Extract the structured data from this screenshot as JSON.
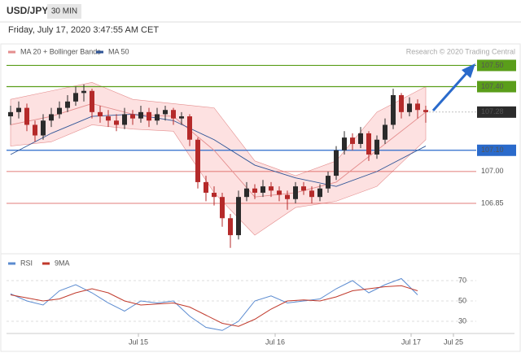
{
  "chart_data": [
    {
      "type": "candlestick",
      "title": "USD/JPY",
      "timeframe": "30 MIN",
      "subtitle": "Friday, July 17, 2020 3:47:55 AM CET",
      "source": "Research © 2020 Trading Central",
      "x": [
        0,
        1,
        2,
        3,
        4,
        5,
        6,
        7,
        8,
        9,
        10,
        11,
        12,
        13,
        14,
        15,
        16,
        17,
        18,
        19,
        20,
        21,
        22,
        23,
        24,
        25,
        26,
        27,
        28,
        29,
        30,
        31,
        32,
        33,
        34,
        35,
        36,
        37,
        38,
        39,
        40,
        41,
        42,
        43,
        44,
        45,
        46,
        47,
        48,
        49,
        50,
        51
      ],
      "open": [
        107.26,
        107.28,
        107.3,
        107.22,
        107.17,
        107.24,
        107.27,
        107.3,
        107.33,
        107.37,
        107.38,
        107.28,
        107.26,
        107.24,
        107.22,
        107.27,
        107.25,
        107.28,
        107.24,
        107.27,
        107.29,
        107.25,
        107.26,
        107.15,
        106.95,
        106.9,
        106.88,
        106.78,
        106.7,
        106.88,
        106.92,
        106.9,
        106.93,
        106.91,
        106.89,
        106.87,
        106.93,
        106.91,
        106.88,
        106.92,
        106.98,
        107.1,
        107.16,
        107.13,
        107.18,
        107.08,
        107.15,
        107.22,
        107.36,
        107.28,
        107.32,
        107.29
      ],
      "high": [
        107.31,
        107.33,
        107.32,
        107.24,
        107.27,
        107.3,
        107.33,
        107.36,
        107.4,
        107.41,
        107.39,
        107.31,
        107.29,
        107.27,
        107.3,
        107.29,
        107.31,
        107.3,
        107.3,
        107.31,
        107.3,
        107.28,
        107.27,
        107.16,
        106.98,
        106.93,
        106.9,
        106.8,
        106.91,
        106.95,
        106.94,
        106.96,
        106.95,
        106.93,
        106.91,
        106.95,
        106.95,
        106.93,
        106.94,
        107.0,
        107.12,
        107.19,
        107.18,
        107.21,
        107.19,
        107.17,
        107.25,
        107.39,
        107.37,
        107.35,
        107.34,
        107.31
      ],
      "low": [
        107.22,
        107.25,
        107.19,
        107.14,
        107.15,
        107.21,
        107.25,
        107.28,
        107.31,
        107.33,
        107.25,
        107.23,
        107.21,
        107.19,
        107.2,
        107.22,
        107.23,
        107.21,
        107.22,
        107.24,
        107.22,
        107.22,
        107.12,
        106.92,
        106.86,
        106.84,
        106.74,
        106.64,
        106.68,
        106.86,
        106.87,
        106.88,
        106.88,
        106.86,
        106.82,
        106.85,
        106.89,
        106.85,
        106.86,
        106.9,
        106.96,
        107.08,
        107.1,
        107.11,
        107.05,
        107.06,
        107.13,
        107.2,
        107.25,
        107.26,
        107.25,
        107.23
      ],
      "close": [
        107.28,
        107.3,
        107.22,
        107.17,
        107.24,
        107.27,
        107.3,
        107.33,
        107.37,
        107.38,
        107.28,
        107.26,
        107.24,
        107.22,
        107.27,
        107.25,
        107.28,
        107.24,
        107.27,
        107.29,
        107.25,
        107.26,
        107.15,
        106.95,
        106.9,
        106.88,
        106.78,
        106.7,
        106.88,
        106.92,
        106.9,
        106.93,
        106.91,
        106.89,
        106.87,
        106.93,
        106.91,
        106.88,
        106.92,
        106.98,
        107.1,
        107.16,
        107.13,
        107.18,
        107.08,
        107.15,
        107.22,
        107.36,
        107.28,
        107.32,
        107.29,
        107.28
      ],
      "up_color": "#2b2b2b",
      "down_color": "#b52a2a",
      "overlays": [
        {
          "name": "MA 20 + Bollinger Bands",
          "color": "#e48e8e",
          "fill": "#fde1e1",
          "x": [
            0,
            5,
            10,
            15,
            20,
            25,
            30,
            35,
            40,
            45,
            51
          ],
          "values": [
            107.22,
            107.26,
            107.32,
            107.27,
            107.26,
            107.1,
            106.88,
            106.9,
            106.95,
            107.1,
            107.28
          ],
          "upper": [
            107.34,
            107.38,
            107.42,
            107.34,
            107.32,
            107.3,
            107.05,
            106.98,
            107.05,
            107.28,
            107.4
          ],
          "lower": [
            107.12,
            107.14,
            107.22,
            107.2,
            107.19,
            106.9,
            106.7,
            106.83,
            106.86,
            106.93,
            107.15
          ]
        },
        {
          "name": "MA 50",
          "color": "#2f5597",
          "x": [
            0,
            5,
            10,
            15,
            20,
            25,
            30,
            35,
            40,
            45,
            51
          ],
          "values": [
            107.08,
            107.18,
            107.26,
            107.27,
            107.24,
            107.15,
            107.03,
            106.97,
            106.93,
            107.0,
            107.12
          ]
        }
      ],
      "levels": [
        {
          "value": 107.5,
          "label": "107.50",
          "color": "#5a9e1a",
          "box": true,
          "style": "solid"
        },
        {
          "value": 107.4,
          "label": "107.40",
          "color": "#5a9e1a",
          "box": true,
          "style": "solid"
        },
        {
          "value": 107.28,
          "label": "107.28",
          "color": "#2b2b2b",
          "box": true,
          "style": "dotted"
        },
        {
          "value": 107.1,
          "label": "107.10",
          "color": "#2a6acb",
          "box": true,
          "style": "solid"
        },
        {
          "value": 107.0,
          "label": "107.00",
          "color": "#d9534f",
          "box": false,
          "style": "solid"
        },
        {
          "value": 106.85,
          "label": "106.85",
          "color": "#d9534f",
          "box": false,
          "style": "solid"
        }
      ],
      "xlim": [
        -0.5,
        57.2
      ],
      "ylim": [
        106.62,
        107.54
      ]
    },
    {
      "type": "line",
      "x": [
        0,
        2,
        4,
        6,
        8,
        10,
        12,
        14,
        16,
        18,
        20,
        22,
        24,
        26,
        28,
        30,
        32,
        34,
        36,
        38,
        40,
        42,
        44,
        46,
        48,
        50
      ],
      "series": [
        {
          "name": "RSI",
          "color": "#5b8bd0",
          "values": [
            57,
            50,
            46,
            60,
            66,
            58,
            48,
            40,
            50,
            48,
            50,
            35,
            24,
            21,
            30,
            50,
            55,
            48,
            50,
            52,
            62,
            70,
            58,
            66,
            72,
            56
          ]
        },
        {
          "name": "9MA",
          "color": "#c0392b",
          "values": [
            56,
            53,
            50,
            52,
            58,
            62,
            58,
            50,
            46,
            47,
            48,
            44,
            36,
            28,
            25,
            32,
            42,
            50,
            51,
            50,
            54,
            60,
            62,
            64,
            65,
            60
          ]
        }
      ],
      "xlim": [
        -0.5,
        57.2
      ],
      "ylim": [
        18,
        78
      ],
      "yticks": [
        30,
        50,
        70
      ],
      "grid": true,
      "xticks": [
        {
          "value": 15.7,
          "label": "Jul 15"
        },
        {
          "value": 32.5,
          "label": "Jul 16"
        },
        {
          "value": 49.2,
          "label": "Jul 17"
        },
        {
          "value": 54.4,
          "label": "Jul 25"
        }
      ]
    }
  ]
}
